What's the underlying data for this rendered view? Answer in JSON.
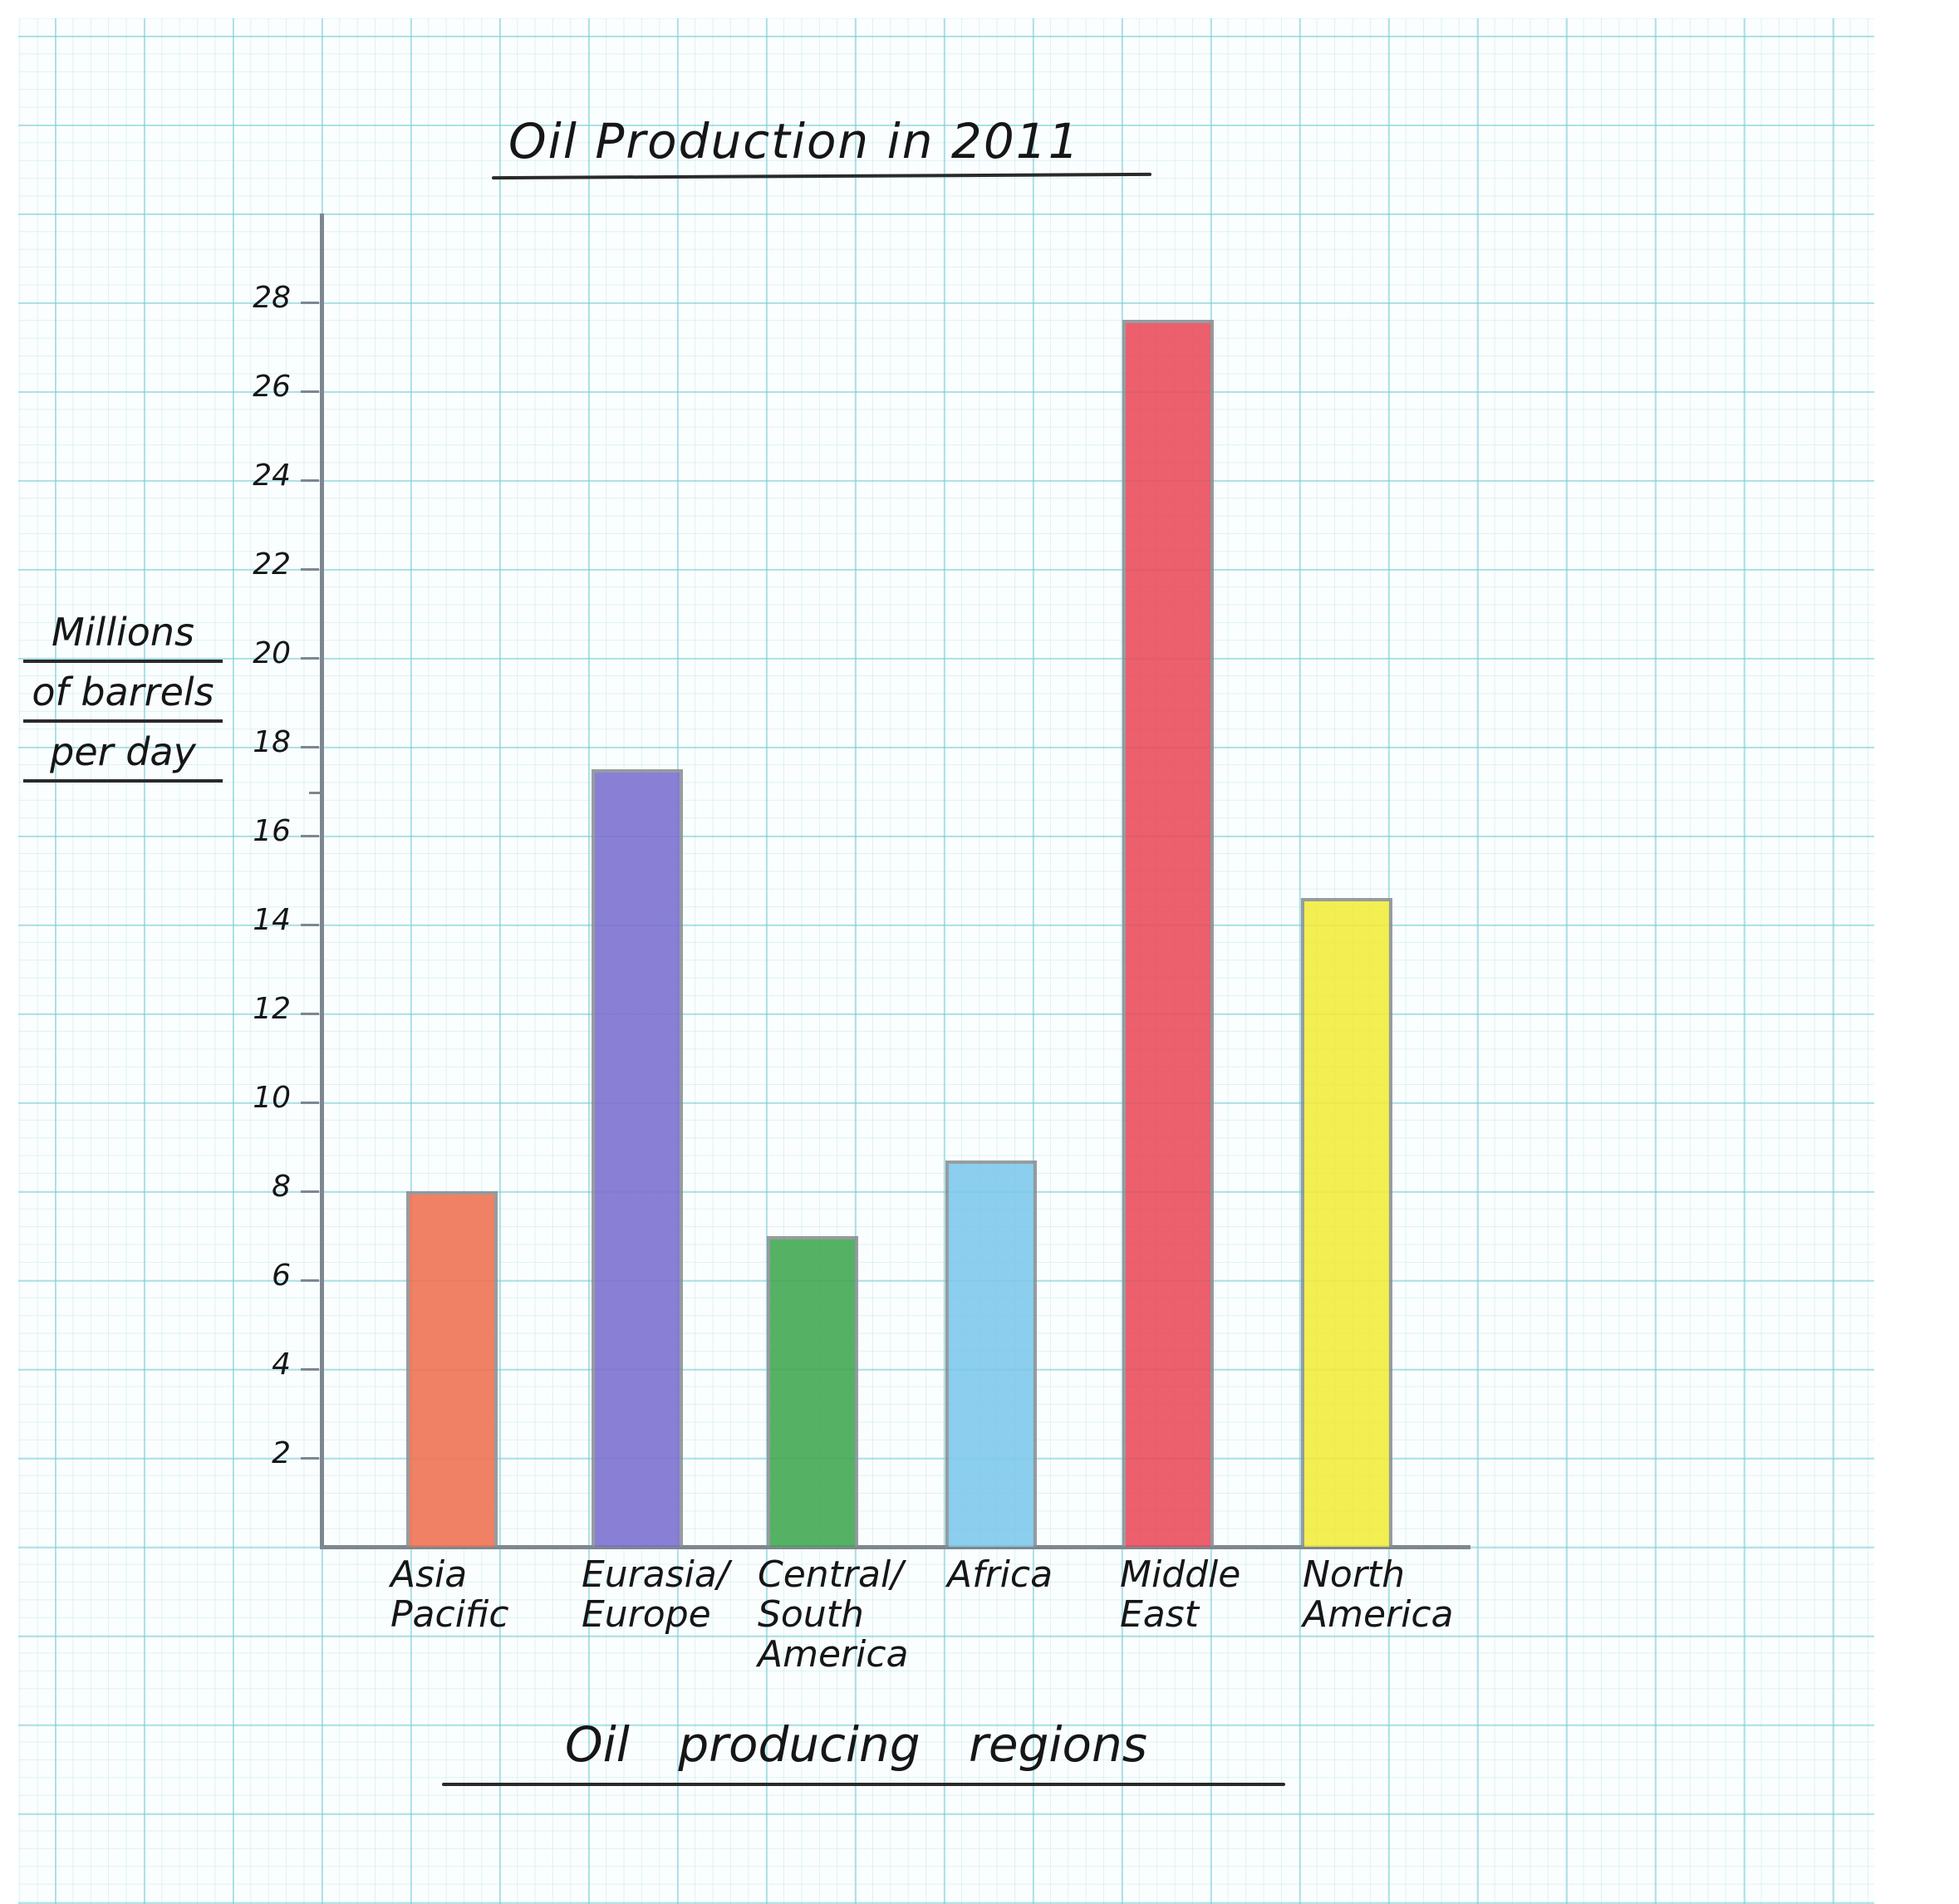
{
  "chart_data": {
    "type": "bar",
    "title": "Oil Production in 2011",
    "xlabel": "Oil producing regions",
    "ylabel": "Millions of barrels per day",
    "ylabel_lines": [
      "Millions",
      "of barrels",
      "per day"
    ],
    "categories": [
      "Asia Pacific",
      "Eurasia/ Europe",
      "Central/ South America",
      "Africa",
      "Middle East",
      "North America"
    ],
    "category_lines": [
      "Asia\nPacific",
      "Eurasia/\nEurope",
      "Central/\nSouth\nAmerica",
      "Africa",
      "Middle\nEast",
      "North\nAmerica"
    ],
    "values": [
      8.0,
      17.5,
      7.0,
      8.7,
      27.6,
      14.6
    ],
    "colors": [
      "#f0704f",
      "#7a6fd0",
      "#3fa84f",
      "#7cc8ec",
      "#ea4a5a",
      "#f2ec3a"
    ],
    "yticks": [
      2,
      4,
      6,
      8,
      10,
      12,
      14,
      16,
      18,
      20,
      22,
      24,
      26,
      28
    ],
    "ylim": [
      0,
      30
    ],
    "grid": true,
    "legend": null,
    "style": "hand-drawn on graph paper"
  }
}
